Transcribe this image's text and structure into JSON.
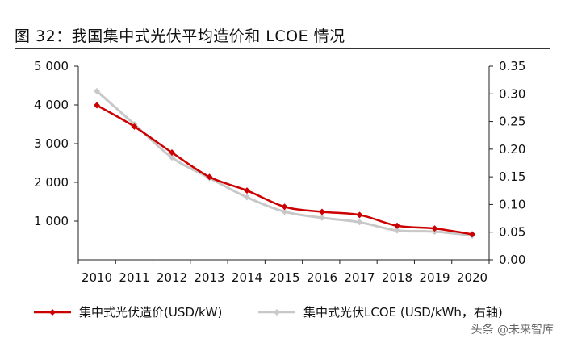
{
  "figure": {
    "title": "图 32：我国集中式光伏平均造价和 LCOE 情况",
    "watermark": "头条 @未来智库"
  },
  "chart_data": {
    "type": "line",
    "title": "图 32：我国集中式光伏平均造价和 LCOE 情况",
    "categories": [
      "2010",
      "2011",
      "2012",
      "2013",
      "2014",
      "2015",
      "2016",
      "2017",
      "2018",
      "2019",
      "2020"
    ],
    "y_left": {
      "ylim": [
        0,
        5000
      ],
      "ticks": [
        1000,
        2000,
        3000,
        4000,
        5000
      ],
      "tick_labels": [
        "1 000",
        "2 000",
        "3 000",
        "4 000",
        "5 000"
      ]
    },
    "y_right": {
      "ylim": [
        0,
        0.35
      ],
      "ticks": [
        0,
        0.05,
        0.1,
        0.15,
        0.2,
        0.25,
        0.3,
        0.35
      ],
      "tick_labels": [
        "0.00",
        "0.05",
        "0.10",
        "0.15",
        "0.20",
        "0.25",
        "0.30",
        "0.35"
      ]
    },
    "series": [
      {
        "name": "集中式光伏造价(USD/kW)",
        "axis": "left",
        "color": "#cc0000",
        "values": [
          3990,
          3440,
          2770,
          2140,
          1790,
          1370,
          1240,
          1160,
          880,
          810,
          660
        ]
      },
      {
        "name": "集中式光伏LCOE (USD/kWh，右轴)",
        "axis": "right",
        "color": "#c8c8c8",
        "values": [
          0.305,
          0.245,
          0.185,
          0.148,
          0.113,
          0.087,
          0.076,
          0.068,
          0.053,
          0.051,
          0.044
        ]
      }
    ]
  }
}
